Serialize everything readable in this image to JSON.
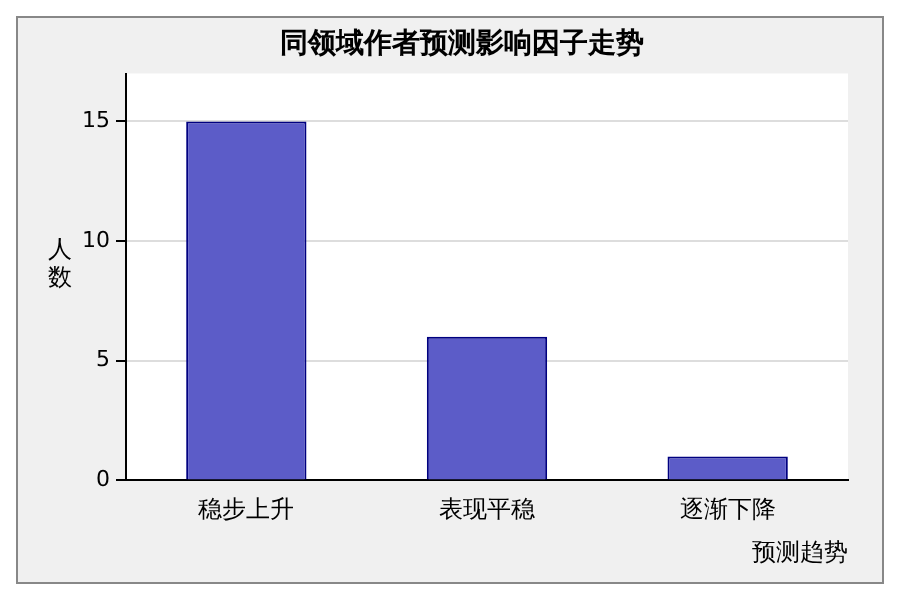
{
  "chart_data": {
    "type": "bar",
    "title": "同领域作者预测影响因子走势",
    "xlabel": "预测趋势",
    "ylabel": "人数",
    "categories": [
      "稳步上升",
      "表现平稳",
      "逐渐下降"
    ],
    "values": [
      15,
      6,
      1
    ],
    "color": "#5c5cc8",
    "ylim": [
      0,
      17
    ],
    "yticks": [
      0,
      5,
      10,
      15
    ],
    "grid": "y",
    "legend": false
  }
}
